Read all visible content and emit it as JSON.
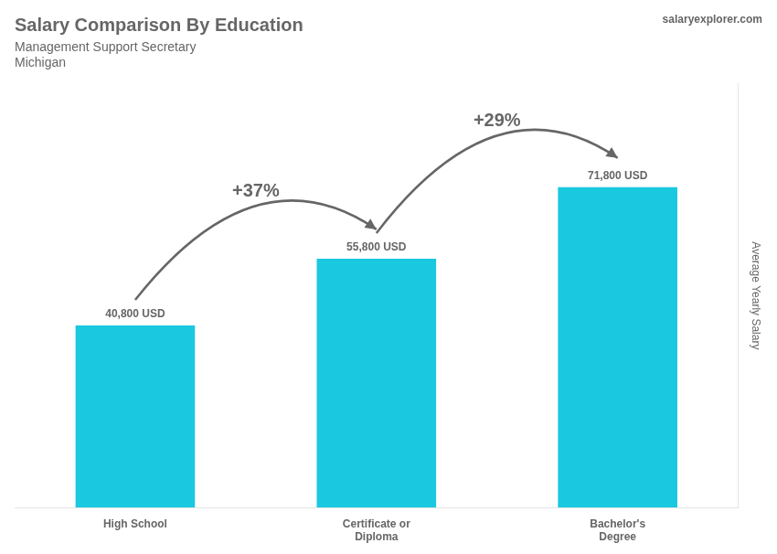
{
  "chart_data": {
    "type": "bar",
    "title": "Salary Comparison By Education",
    "subtitle": [
      "Management Support Secretary",
      "Michigan"
    ],
    "brand": "salaryexplorer.com",
    "y_label": "Average Yearly Salary",
    "categories": [
      "High School",
      "Certificate or\nDiploma",
      "Bachelor's\nDegree"
    ],
    "values": [
      40800,
      55800,
      71800
    ],
    "value_labels": [
      "40,800 USD",
      "55,800 USD",
      "71,800 USD"
    ],
    "data_labels": true,
    "annotations": [
      "+37%",
      "+29%"
    ],
    "color": "#1ac8e0",
    "ylim": [
      0,
      95000
    ],
    "yticks": [],
    "tick_labels": "x",
    "grid": false
  }
}
